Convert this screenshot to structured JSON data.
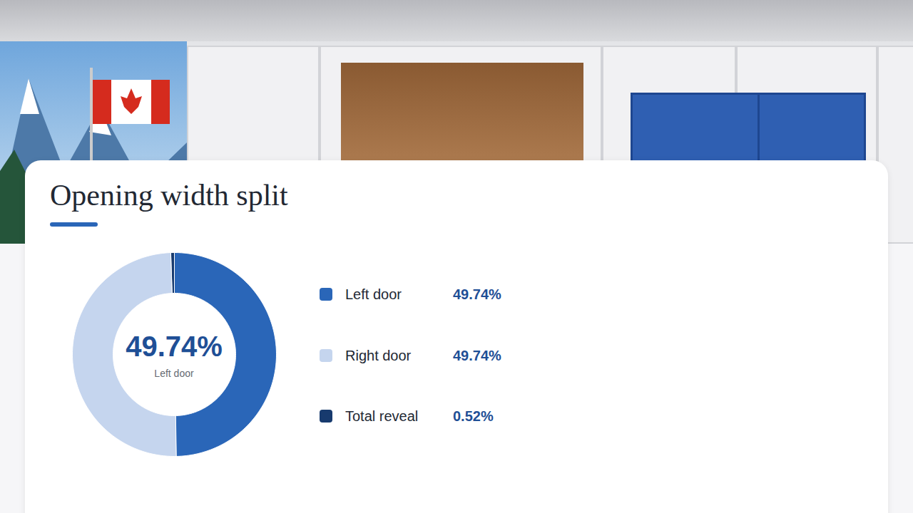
{
  "chart_data": {
    "type": "donut",
    "title": "Opening width split",
    "categories": [
      "Left door",
      "Right door",
      "Total reveal"
    ],
    "values": [
      49.74,
      49.74,
      0.52
    ],
    "value_labels": [
      "49.74%",
      "49.74%",
      "0.52%"
    ],
    "colors": [
      "#2a66b8",
      "#c5d5ee",
      "#173a6e"
    ],
    "legend": "right"
  }
}
